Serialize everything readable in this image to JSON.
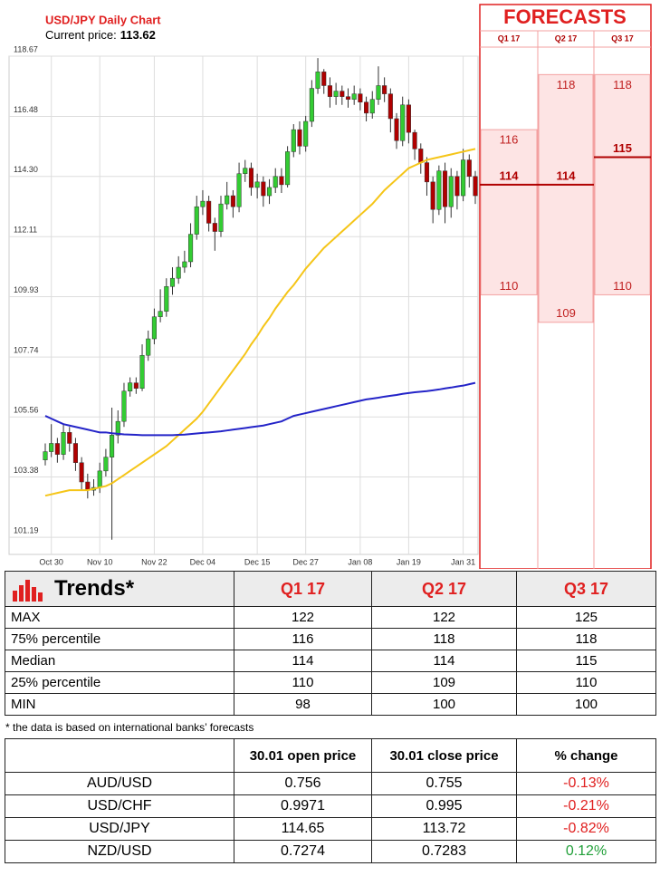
{
  "chart_data": {
    "type": "candlestick",
    "title": "USD/JPY Daily Chart",
    "subtitle": "Current price:",
    "current_price": 113.62,
    "categories": [
      null,
      "Oct 30",
      null,
      null,
      null,
      null,
      null,
      null,
      null,
      "Nov 10",
      null,
      null,
      null,
      null,
      null,
      null,
      null,
      null,
      "Nov 22",
      null,
      null,
      null,
      null,
      null,
      null,
      null,
      "Dec 04",
      null,
      null,
      null,
      null,
      null,
      null,
      null,
      null,
      "Dec 15",
      null,
      null,
      null,
      null,
      null,
      null,
      null,
      "Dec 27",
      null,
      null,
      null,
      null,
      null,
      null,
      null,
      null,
      "Jan 08",
      null,
      null,
      null,
      null,
      null,
      null,
      null,
      "Jan 19",
      null,
      null,
      null,
      null,
      null,
      null,
      null,
      null,
      "Jan 31",
      null,
      null
    ],
    "open": [
      104.0,
      104.3,
      104.6,
      104.2,
      105.0,
      104.6,
      103.9,
      103.2,
      102.9,
      103.0,
      103.6,
      104.1,
      104.9,
      105.4,
      106.5,
      106.8,
      106.6,
      107.8,
      108.4,
      109.2,
      109.4,
      110.3,
      110.6,
      111.0,
      111.2,
      112.2,
      113.2,
      113.4,
      112.6,
      112.3,
      113.3,
      113.6,
      113.2,
      114.4,
      114.6,
      113.9,
      114.1,
      113.6,
      113.9,
      114.3,
      114.0,
      115.2,
      116.0,
      115.4,
      116.3,
      117.5,
      118.1,
      117.6,
      117.2,
      117.4,
      117.2,
      117.1,
      117.3,
      117.0,
      116.6,
      117.1,
      117.6,
      117.3,
      116.4,
      115.6,
      116.9,
      115.9,
      115.3,
      114.8,
      114.1,
      113.1,
      114.5,
      113.2,
      114.3,
      113.6,
      114.9,
      114.3
    ],
    "high": [
      104.6,
      105.3,
      104.8,
      105.3,
      105.2,
      104.8,
      104.1,
      103.5,
      103.3,
      103.9,
      104.4,
      105.9,
      105.8,
      106.8,
      107.0,
      107.0,
      108.2,
      108.7,
      109.5,
      110.2,
      110.6,
      111.0,
      111.4,
      111.6,
      112.6,
      113.6,
      113.8,
      113.6,
      112.8,
      113.6,
      114.1,
      113.8,
      114.8,
      114.9,
      114.8,
      114.4,
      114.3,
      114.2,
      114.6,
      114.6,
      115.4,
      116.2,
      116.3,
      116.5,
      117.8,
      118.6,
      118.2,
      117.9,
      117.7,
      117.6,
      117.5,
      117.6,
      117.5,
      117.2,
      117.4,
      118.3,
      117.9,
      117.5,
      116.6,
      117.2,
      117.1,
      116.0,
      115.5,
      115.0,
      114.3,
      114.7,
      114.8,
      114.6,
      114.5,
      115.3,
      115.1,
      114.5
    ],
    "low": [
      103.8,
      104.1,
      103.9,
      104.0,
      104.3,
      103.6,
      102.9,
      102.6,
      102.7,
      102.8,
      103.4,
      101.1,
      104.6,
      105.2,
      106.3,
      106.4,
      106.5,
      107.6,
      108.2,
      109.0,
      109.2,
      110.0,
      110.4,
      110.8,
      111.0,
      112.0,
      112.9,
      112.3,
      111.6,
      112.1,
      113.1,
      112.8,
      113.0,
      114.1,
      113.6,
      113.5,
      113.2,
      113.3,
      113.7,
      113.7,
      113.9,
      115.0,
      115.1,
      115.2,
      116.1,
      117.3,
      117.3,
      116.8,
      116.9,
      116.9,
      116.8,
      116.9,
      116.7,
      116.3,
      116.4,
      116.9,
      117.0,
      115.9,
      115.3,
      115.4,
      115.5,
      114.9,
      114.4,
      113.6,
      112.6,
      112.9,
      112.6,
      112.8,
      113.1,
      113.4,
      113.9,
      113.3
    ],
    "close": [
      104.3,
      104.6,
      104.2,
      105.0,
      104.6,
      103.9,
      103.2,
      102.9,
      103.0,
      103.6,
      104.1,
      104.9,
      105.4,
      106.5,
      106.8,
      106.6,
      107.8,
      108.4,
      109.2,
      109.4,
      110.3,
      110.6,
      111.0,
      111.2,
      112.2,
      113.2,
      113.4,
      112.6,
      112.3,
      113.3,
      113.6,
      113.2,
      114.4,
      114.6,
      113.9,
      114.1,
      113.6,
      113.9,
      114.3,
      114.0,
      115.2,
      116.0,
      115.4,
      116.3,
      117.5,
      118.1,
      117.6,
      117.2,
      117.4,
      117.2,
      117.1,
      117.3,
      117.0,
      116.6,
      117.1,
      117.6,
      117.3,
      116.4,
      115.6,
      116.9,
      115.9,
      115.3,
      114.8,
      114.1,
      113.1,
      114.5,
      113.2,
      114.3,
      113.6,
      114.9,
      114.3,
      113.6
    ],
    "lines": [
      {
        "color": "#f5c518",
        "values": [
          102.7,
          102.75,
          102.8,
          102.85,
          102.9,
          102.9,
          102.9,
          102.9,
          102.95,
          103.0,
          103.05,
          103.15,
          103.3,
          103.45,
          103.6,
          103.75,
          103.9,
          104.05,
          104.2,
          104.35,
          104.5,
          104.7,
          104.9,
          105.1,
          105.3,
          105.5,
          105.75,
          106.05,
          106.35,
          106.65,
          106.95,
          107.25,
          107.55,
          107.85,
          108.2,
          108.5,
          108.85,
          109.15,
          109.5,
          109.8,
          110.1,
          110.35,
          110.65,
          110.95,
          111.2,
          111.45,
          111.7,
          111.9,
          112.1,
          112.3,
          112.5,
          112.7,
          112.9,
          113.1,
          113.3,
          113.55,
          113.8,
          114.0,
          114.2,
          114.4,
          114.6,
          114.7,
          114.8,
          114.9,
          114.95,
          115.0,
          115.05,
          115.1,
          115.15,
          115.2,
          115.25,
          115.3
        ]
      },
      {
        "color": "#2424c8",
        "values": [
          105.6,
          105.5,
          105.4,
          105.3,
          105.25,
          105.2,
          105.15,
          105.1,
          105.05,
          105.0,
          105.0,
          104.97,
          104.95,
          104.93,
          104.92,
          104.91,
          104.9,
          104.9,
          104.9,
          104.9,
          104.9,
          104.9,
          104.91,
          104.92,
          104.94,
          104.96,
          104.98,
          105.0,
          105.02,
          105.04,
          105.07,
          105.1,
          105.13,
          105.16,
          105.19,
          105.22,
          105.25,
          105.3,
          105.35,
          105.4,
          105.5,
          105.6,
          105.65,
          105.7,
          105.75,
          105.8,
          105.85,
          105.9,
          105.95,
          106.0,
          106.05,
          106.1,
          106.15,
          106.2,
          106.23,
          106.26,
          106.3,
          106.33,
          106.36,
          106.4,
          106.43,
          106.46,
          106.48,
          106.5,
          106.53,
          106.56,
          106.6,
          106.63,
          106.67,
          106.7,
          106.75,
          106.8
        ]
      }
    ],
    "up_color": "#33cc33",
    "down_color": "#b00000",
    "ylim": [
      100.6,
      118.67
    ],
    "yticks": [
      {
        "value": 101.19,
        "label": "101.19"
      },
      {
        "value": 103.38,
        "label": "103.38"
      },
      {
        "value": 105.56,
        "label": "105.56"
      },
      {
        "value": 107.74,
        "label": "107.74"
      },
      {
        "value": 109.93,
        "label": "109.93"
      },
      {
        "value": 112.11,
        "label": "112.11"
      },
      {
        "value": 114.3,
        "label": "114.30"
      },
      {
        "value": 116.48,
        "label": "116.48"
      },
      {
        "value": 118.67,
        "label": "118.67"
      }
    ],
    "grid": true
  },
  "forecasts": {
    "title": "FORECASTS",
    "columns": [
      {
        "label": "Q1 17",
        "p75": 116,
        "median": 114,
        "p25": 110
      },
      {
        "label": "Q2 17",
        "p75": 118,
        "median": 114,
        "p25": 109
      },
      {
        "label": "Q3 17",
        "p75": 118,
        "median": 115,
        "p25": 110
      }
    ]
  },
  "trends_table": {
    "title": "Trends*",
    "headers": [
      "Q1 17",
      "Q2 17",
      "Q3 17"
    ],
    "rows": [
      {
        "label": "MAX",
        "values": [
          122,
          122,
          125
        ]
      },
      {
        "label": "75% percentile",
        "values": [
          116,
          118,
          118
        ]
      },
      {
        "label": "Median",
        "values": [
          114,
          114,
          115
        ]
      },
      {
        "label": "25% percentile",
        "values": [
          110,
          109,
          110
        ]
      },
      {
        "label": "MIN",
        "values": [
          98,
          100,
          100
        ]
      }
    ]
  },
  "footnote": "* the data is based on international banks’ forecasts",
  "price_table": {
    "headers": [
      "30.01 open price",
      "30.01 close price",
      "% change"
    ],
    "rows": [
      {
        "pair": "AUD/USD",
        "open": 0.756,
        "close": 0.755,
        "change": "-0.13%",
        "color": "#e02020"
      },
      {
        "pair": "USD/CHF",
        "open": 0.9971,
        "close": 0.995,
        "change": "-0.21%",
        "color": "#e02020"
      },
      {
        "pair": "USD/JPY",
        "open": 114.65,
        "close": 113.72,
        "change": "-0.82%",
        "color": "#e02020"
      },
      {
        "pair": "NZD/USD",
        "open": 0.7274,
        "close": 0.7283,
        "change": "0.12%",
        "color": "#22a03a"
      }
    ]
  }
}
